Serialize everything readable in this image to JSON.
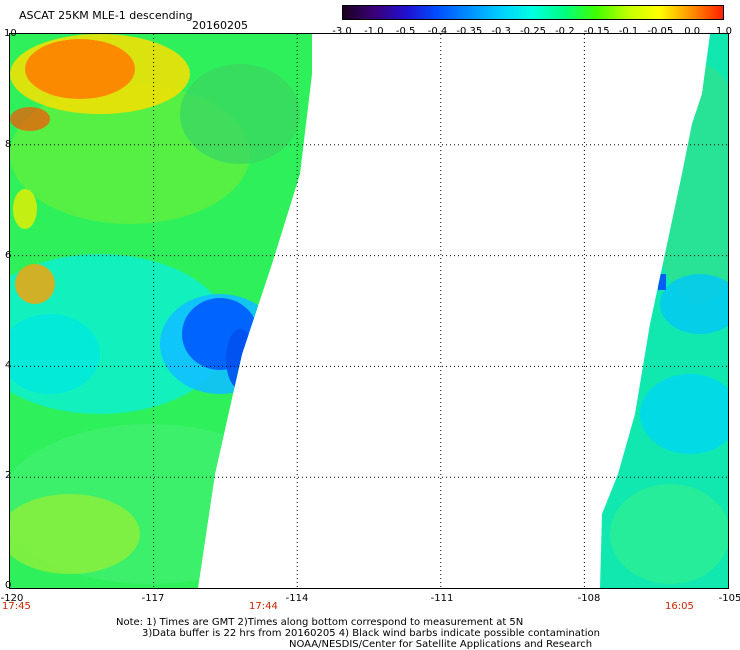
{
  "header": {
    "title": "ASCAT 25KM MLE-1 descending",
    "date": "20160205"
  },
  "colorbar": {
    "labels": [
      "-3.0",
      "-1.0",
      "-0.5",
      "-0.4",
      "-0.35",
      "-0.3",
      "-0.25",
      "-0.2",
      "-0.15",
      "-0.1",
      "-0.05",
      "0.0",
      "1.0"
    ],
    "colors": [
      "#1a0020",
      "#3a0078",
      "#2010d0",
      "#0050ff",
      "#0090ff",
      "#00d0ff",
      "#00ffe0",
      "#00ff80",
      "#40ff00",
      "#c0ff00",
      "#ffff00",
      "#ff9000",
      "#ff2000"
    ]
  },
  "axes": {
    "x_ticks": [
      "-120",
      "-117",
      "-114",
      "-111",
      "-108",
      "-105"
    ],
    "y_ticks": [
      "0",
      "2",
      "4",
      "6",
      "8",
      "10"
    ],
    "x_range": [
      -120,
      -105
    ],
    "y_range": [
      0,
      10
    ]
  },
  "times": {
    "left": "17:45",
    "middle": "17:44",
    "right": "16:05"
  },
  "notes": {
    "line1": "Note: 1) Times are GMT 2)Times along bottom correspond to measurement at 5N",
    "line2": "3)Data buffer is 22 hrs from 20160205 4) Black wind barbs indicate possible contamination",
    "line3": "NOAA/NESDIS/Center for Satellite Applications and Research"
  }
}
